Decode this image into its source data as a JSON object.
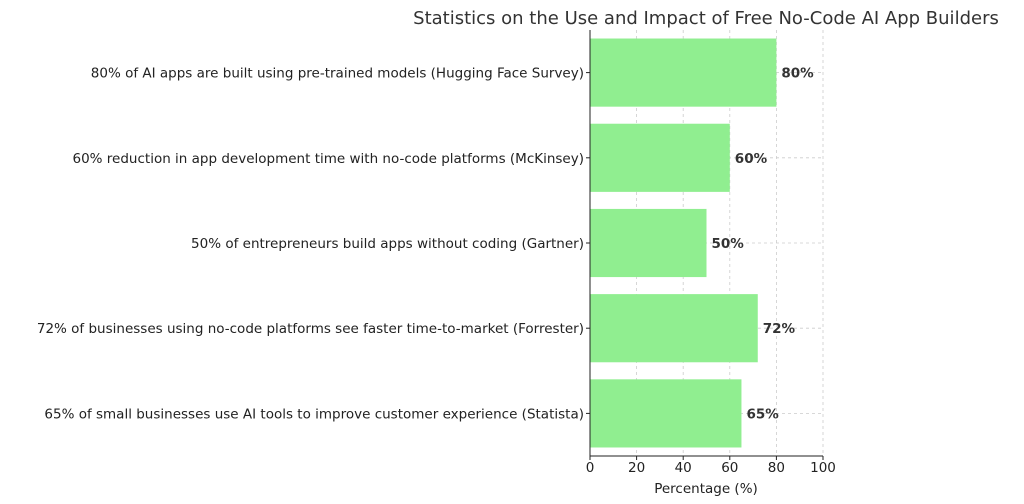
{
  "chart_data": {
    "type": "bar",
    "orientation": "horizontal",
    "title": "Statistics on the Use and Impact of Free No-Code AI App Builders",
    "xlabel": "Percentage (%)",
    "ylabel": "",
    "xlim": [
      0,
      100
    ],
    "xticks": [
      0,
      20,
      40,
      60,
      80,
      100
    ],
    "grid": true,
    "bar_color": "#90ee90",
    "categories": [
      "65% of small businesses use AI tools to improve customer experience (Statista)",
      "72% of businesses using no-code platforms see faster time-to-market (Forrester)",
      "50% of entrepreneurs build apps without coding (Gartner)",
      "60% reduction in app development time with no-code platforms (McKinsey)",
      "80% of AI apps are built using pre-trained models (Hugging Face Survey)"
    ],
    "values": [
      65,
      72,
      50,
      60,
      80
    ],
    "data_labels": [
      "65%",
      "72%",
      "50%",
      "60%",
      "80%"
    ]
  }
}
